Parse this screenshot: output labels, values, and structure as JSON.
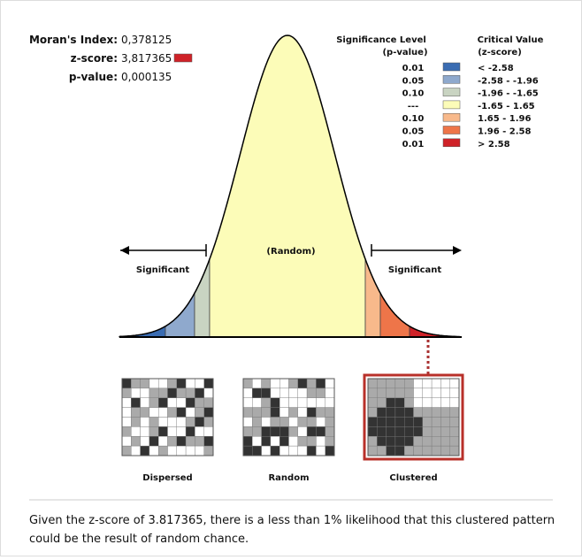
{
  "stats": [
    {
      "label": "Moran's Index:",
      "value": "0,378125"
    },
    {
      "label": "z-score:",
      "value": "3,817365"
    },
    {
      "label": "p-value:",
      "value": "0,000135"
    }
  ],
  "legend": {
    "p_title": [
      "Significance Level",
      "(p-value)"
    ],
    "z_title": [
      "Critical Value",
      "(z-score)"
    ],
    "rows": [
      {
        "p": "0.01",
        "z": "< -2.58",
        "color": "#3a6cb2"
      },
      {
        "p": "0.05",
        "z": "-2.58 - -1.96",
        "color": "#8fa9cd"
      },
      {
        "p": "0.10",
        "z": "-1.96 - -1.65",
        "color": "#c9d4c2"
      },
      {
        "p": "---",
        "z": "-1.65 - 1.65",
        "color": "#fcfcb8"
      },
      {
        "p": "0.10",
        "z": "1.65 - 1.96",
        "color": "#f8b98b"
      },
      {
        "p": "0.05",
        "z": "1.96 - 2.58",
        "color": "#ee7549"
      },
      {
        "p": "0.01",
        "z": "> 2.58",
        "color": "#cf2228"
      }
    ]
  },
  "curve": {
    "left_label": "Significant",
    "center_label": "(Random)",
    "right_label": "Significant"
  },
  "maps": [
    "Dispersed",
    "Random",
    "Clustered"
  ],
  "caption": [
    "Given the z-score of 3.817365, there is a less than 1% likelihood that this clustered pattern",
    "could be the result of random chance."
  ]
}
